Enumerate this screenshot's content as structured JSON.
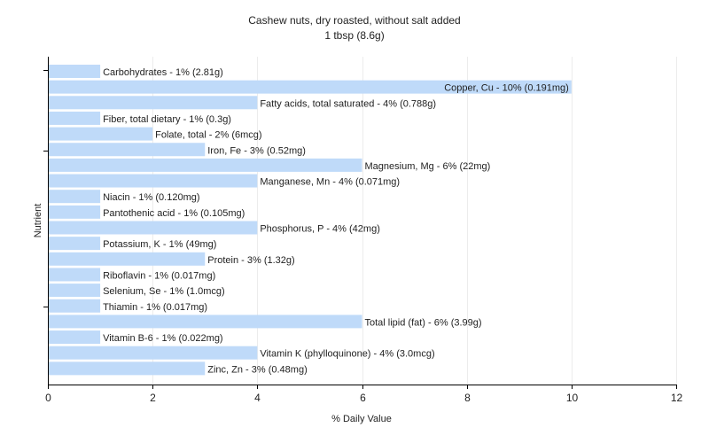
{
  "chart_data": {
    "type": "bar",
    "orientation": "horizontal",
    "title": "Cashew nuts, dry roasted, without salt added",
    "subtitle": "1 tbsp (8.6g)",
    "xlabel": "% Daily Value",
    "ylabel": "Nutrient",
    "xlim": [
      0,
      12
    ],
    "xticks": [
      0,
      2,
      4,
      6,
      8,
      10,
      12
    ],
    "grid": true,
    "bar_color": "#bfdaf9",
    "categories": [
      "Carbohydrates",
      "Copper, Cu",
      "Fatty acids, total saturated",
      "Fiber, total dietary",
      "Folate, total",
      "Iron, Fe",
      "Magnesium, Mg",
      "Manganese, Mn",
      "Niacin",
      "Pantothenic acid",
      "Phosphorus, P",
      "Potassium, K",
      "Protein",
      "Riboflavin",
      "Selenium, Se",
      "Thiamin",
      "Total lipid (fat)",
      "Vitamin B-6",
      "Vitamin K (phylloquinone)",
      "Zinc, Zn"
    ],
    "values": [
      1,
      10,
      4,
      1,
      2,
      3,
      6,
      4,
      1,
      1,
      4,
      1,
      3,
      1,
      1,
      1,
      6,
      1,
      4,
      3
    ],
    "labels": [
      "Carbohydrates - 1% (2.81g)",
      "Copper, Cu - 10% (0.191mg)",
      "Fatty acids, total saturated - 4% (0.788g)",
      "Fiber, total dietary - 1% (0.3g)",
      "Folate, total - 2% (6mcg)",
      "Iron, Fe - 3% (0.52mg)",
      "Magnesium, Mg - 6% (22mg)",
      "Manganese, Mn - 4% (0.071mg)",
      "Niacin - 1% (0.120mg)",
      "Pantothenic acid - 1% (0.105mg)",
      "Phosphorus, P - 4% (42mg)",
      "Potassium, K - 1% (49mg)",
      "Protein - 3% (1.32g)",
      "Riboflavin - 1% (0.017mg)",
      "Selenium, Se - 1% (1.0mcg)",
      "Thiamin - 1% (0.017mg)",
      "Total lipid (fat) - 6% (3.99g)",
      "Vitamin B-6 - 1% (0.022mg)",
      "Vitamin K (phylloquinone) - 4% (3.0mcg)",
      "Zinc, Zn - 3% (0.48mg)"
    ]
  }
}
